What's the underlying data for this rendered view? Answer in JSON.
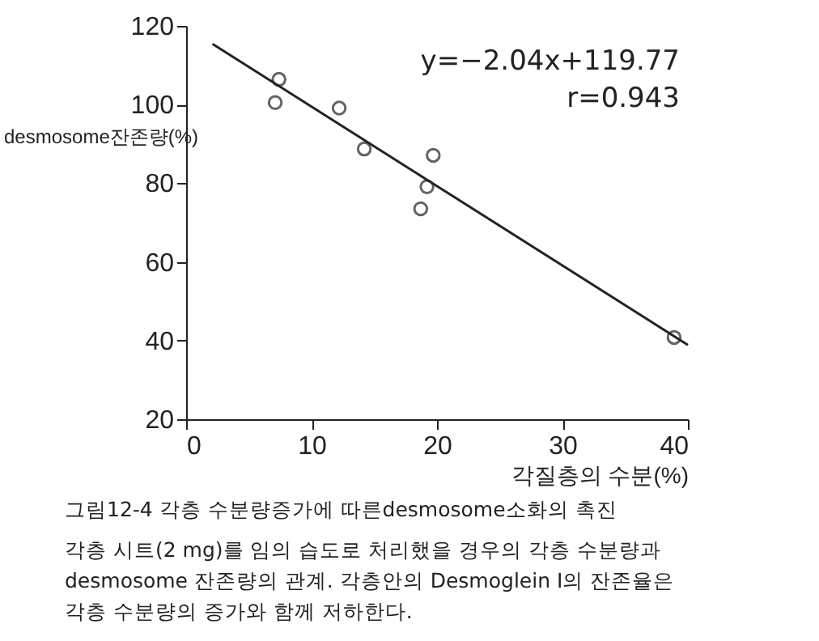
{
  "chart_data": {
    "type": "scatter",
    "xlabel": "각질층의 수분(%)",
    "ylabel": "desmosome잔존량(%)",
    "xlim": [
      0,
      40
    ],
    "xticks": [
      0,
      10,
      20,
      30,
      40
    ],
    "ylim": [
      20,
      120
    ],
    "yticks": [
      20,
      40,
      60,
      80,
      100,
      120
    ],
    "grid": false,
    "marker": "circle",
    "series": [
      {
        "color": "#222222",
        "x": [
          7.4,
          7.1,
          12.2,
          14.2,
          18.7,
          19.2,
          19.7,
          38.9
        ],
        "values": [
          106.4,
          100.5,
          99.1,
          88.7,
          73.5,
          79.1,
          87.1,
          40.8
        ]
      },
      {
        "type": "line",
        "color": "#222222",
        "line_style": "solid",
        "marker": "none",
        "x": [
          2.1,
          40
        ],
        "values": [
          115.4,
          38.9
        ]
      }
    ],
    "annotations": [
      "y=−2.04x+119.77",
      "r=0.943",
      "그림12-4 각층 수분량증가에 따른desmosome소화의 촉진",
      "각층 시트(2 mg)를 임의 습도로 처리했을 경우의 각층 수분량과",
      "desmosome 잔존량의 관계. 각층안의 Desmoglein I의 잔존율은",
      "각층 수분량의 증가와 함께 저하한다."
    ]
  }
}
